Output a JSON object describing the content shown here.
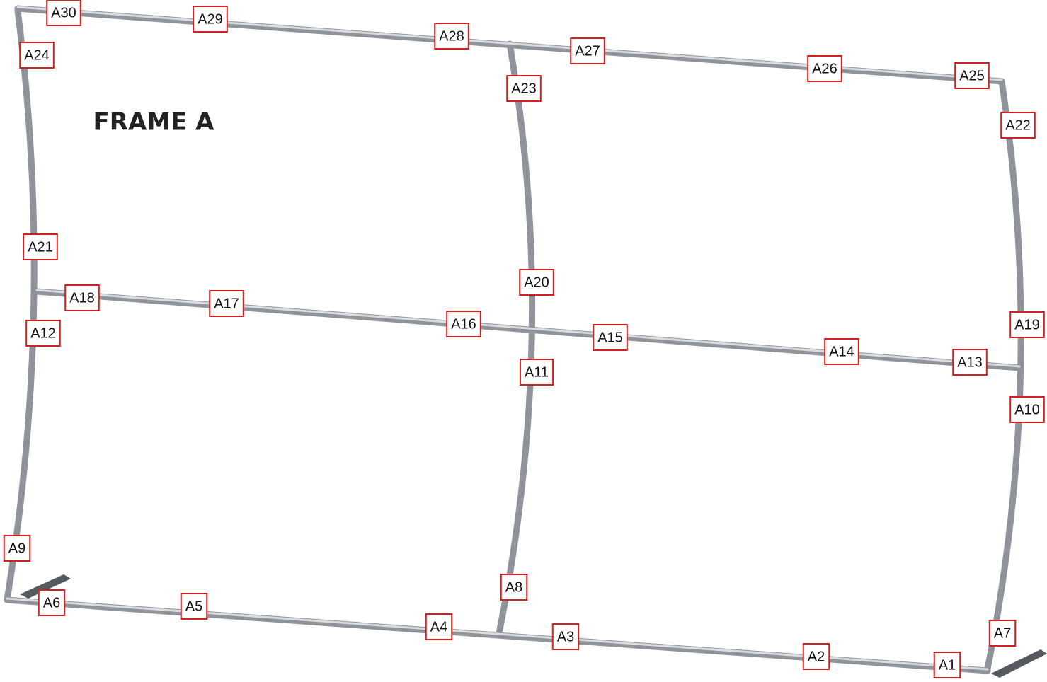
{
  "title": "FRAME A",
  "labels": [
    "A1",
    "A2",
    "A3",
    "A4",
    "A5",
    "A6",
    "A7",
    "A8",
    "A9",
    "A10",
    "A11",
    "A12",
    "A13",
    "A14",
    "A15",
    "A16",
    "A17",
    "A18",
    "A19",
    "A20",
    "A21",
    "A22",
    "A23",
    "A24",
    "A25",
    "A26",
    "A27",
    "A28",
    "A29",
    "A30"
  ]
}
